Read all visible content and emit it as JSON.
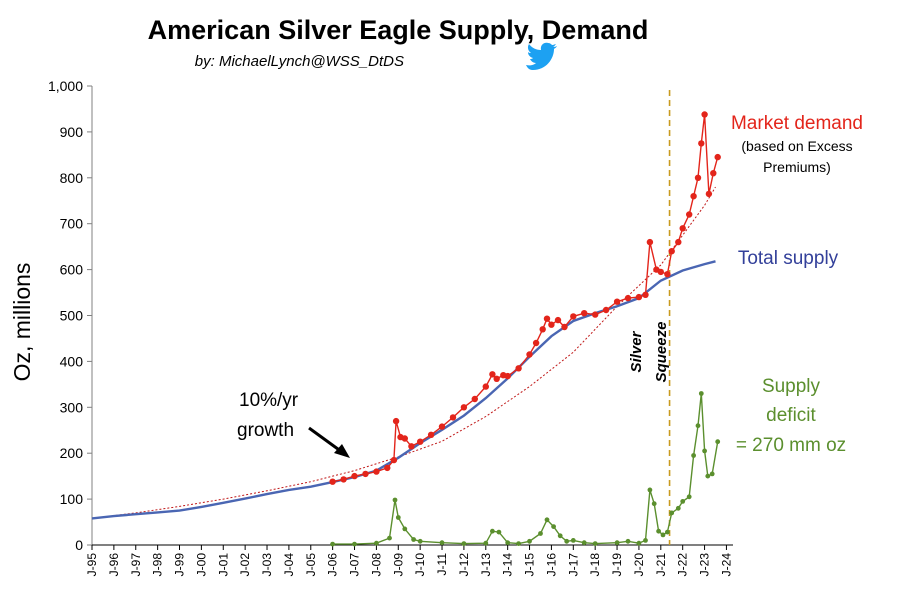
{
  "chart_data": {
    "type": "line",
    "title": "American Silver Eagle Supply, Demand",
    "byline": "by: MichaelLynch@WSS_DtDS",
    "ylabel": "Oz, millions",
    "ylim": [
      0,
      1000
    ],
    "yticks": [
      "0",
      "100",
      "200",
      "300",
      "400",
      "500",
      "600",
      "700",
      "800",
      "900",
      "1,000"
    ],
    "xticks": [
      "J-95",
      "J-96",
      "J-97",
      "J-98",
      "J-99",
      "J-00",
      "J-01",
      "J-02",
      "J-03",
      "J-04",
      "J-05",
      "J-06",
      "J-07",
      "J-08",
      "J-09",
      "J-10",
      "J-11",
      "J-12",
      "J-13",
      "J-14",
      "J-15",
      "J-16",
      "J-17",
      "J-18",
      "J-19",
      "J-20",
      "J-21",
      "J-22",
      "J-23",
      "J-24"
    ],
    "series": [
      {
        "name": "Total supply",
        "color": "#4a66b3",
        "x": [
          1995,
          1996,
          1997,
          1998,
          1999,
          2000,
          2001,
          2002,
          2003,
          2004,
          2005,
          2006,
          2007,
          2008,
          2009,
          2010,
          2011,
          2012,
          2013,
          2014,
          2015,
          2016,
          2017,
          2018,
          2019,
          2020,
          2021,
          2022,
          2023,
          2023.5
        ],
        "y": [
          58,
          63,
          67,
          71,
          75,
          83,
          92,
          101,
          111,
          120,
          127,
          137,
          148,
          162,
          190,
          222,
          251,
          282,
          320,
          363,
          410,
          455,
          488,
          505,
          520,
          538,
          576,
          598,
          612,
          618
        ]
      },
      {
        "name": "Market demand",
        "color": "#e3251b",
        "x": [
          2006,
          2006.5,
          2007,
          2007.5,
          2008,
          2008.5,
          2008.8,
          2008.9,
          2009.1,
          2009.3,
          2009.6,
          2010,
          2010.5,
          2011,
          2011.5,
          2012,
          2012.5,
          2013,
          2013.3,
          2013.5,
          2013.8,
          2014,
          2014.5,
          2015,
          2015.3,
          2015.6,
          2015.8,
          2016,
          2016.3,
          2016.6,
          2017,
          2017.5,
          2018,
          2018.5,
          2019,
          2019.5,
          2020,
          2020.3,
          2020.5,
          2020.8,
          2021,
          2021.3,
          2021.5,
          2021.8,
          2022,
          2022.3,
          2022.5,
          2022.7,
          2022.85,
          2023,
          2023.2,
          2023.4,
          2023.6
        ],
        "y": [
          138,
          143,
          150,
          155,
          160,
          168,
          185,
          270,
          235,
          232,
          215,
          225,
          240,
          258,
          278,
          300,
          318,
          345,
          372,
          362,
          370,
          368,
          385,
          415,
          440,
          470,
          493,
          480,
          490,
          475,
          498,
          505,
          502,
          512,
          530,
          538,
          540,
          545,
          660,
          600,
          595,
          590,
          640,
          660,
          690,
          720,
          760,
          800,
          875,
          938,
          765,
          810,
          845
        ]
      },
      {
        "name": "Supply deficit",
        "color": "#5b8f2e",
        "x": [
          2006,
          2007,
          2008,
          2008.6,
          2008.85,
          2009,
          2009.3,
          2009.7,
          2010,
          2011,
          2012,
          2013,
          2013.3,
          2013.6,
          2014,
          2014.5,
          2015,
          2015.5,
          2015.8,
          2016.1,
          2016.4,
          2016.7,
          2017,
          2017.5,
          2018,
          2019,
          2019.5,
          2020,
          2020.3,
          2020.5,
          2020.7,
          2020.9,
          2021.1,
          2021.3,
          2021.5,
          2021.8,
          2022,
          2022.3,
          2022.5,
          2022.7,
          2022.85,
          2023,
          2023.15,
          2023.35,
          2023.6
        ],
        "y": [
          2,
          2,
          4,
          15,
          98,
          60,
          35,
          12,
          8,
          5,
          3,
          4,
          30,
          28,
          5,
          3,
          8,
          25,
          55,
          40,
          20,
          8,
          10,
          5,
          3,
          5,
          8,
          4,
          10,
          120,
          90,
          30,
          22,
          28,
          70,
          80,
          95,
          105,
          195,
          260,
          330,
          205,
          150,
          155,
          225
        ]
      },
      {
        "name": "10%/yr growth",
        "color": "#c01818",
        "dashed": true,
        "x": [
          1995,
          1997,
          1999,
          2001,
          2003,
          2005,
          2007,
          2009,
          2011,
          2013,
          2015,
          2017,
          2019,
          2021,
          2023,
          2023.5
        ],
        "y": [
          58,
          70,
          84,
          100,
          118,
          138,
          162,
          192,
          226,
          280,
          345,
          420,
          520,
          610,
          740,
          780
        ]
      }
    ],
    "annotations": {
      "market_demand_title": "Market demand",
      "market_demand_note_1": "(based on Excess",
      "market_demand_note_2": "Premiums)",
      "total_supply": "Total supply",
      "deficit_1": "Supply",
      "deficit_2": "deficit",
      "deficit_3": "= 270 mm oz",
      "growth_1": "10%/yr",
      "growth_2": "growth",
      "silver": "Silver",
      "squeeze": "Squeeze",
      "squeeze_x": 2021.4
    },
    "grid": false,
    "legend": "none"
  }
}
